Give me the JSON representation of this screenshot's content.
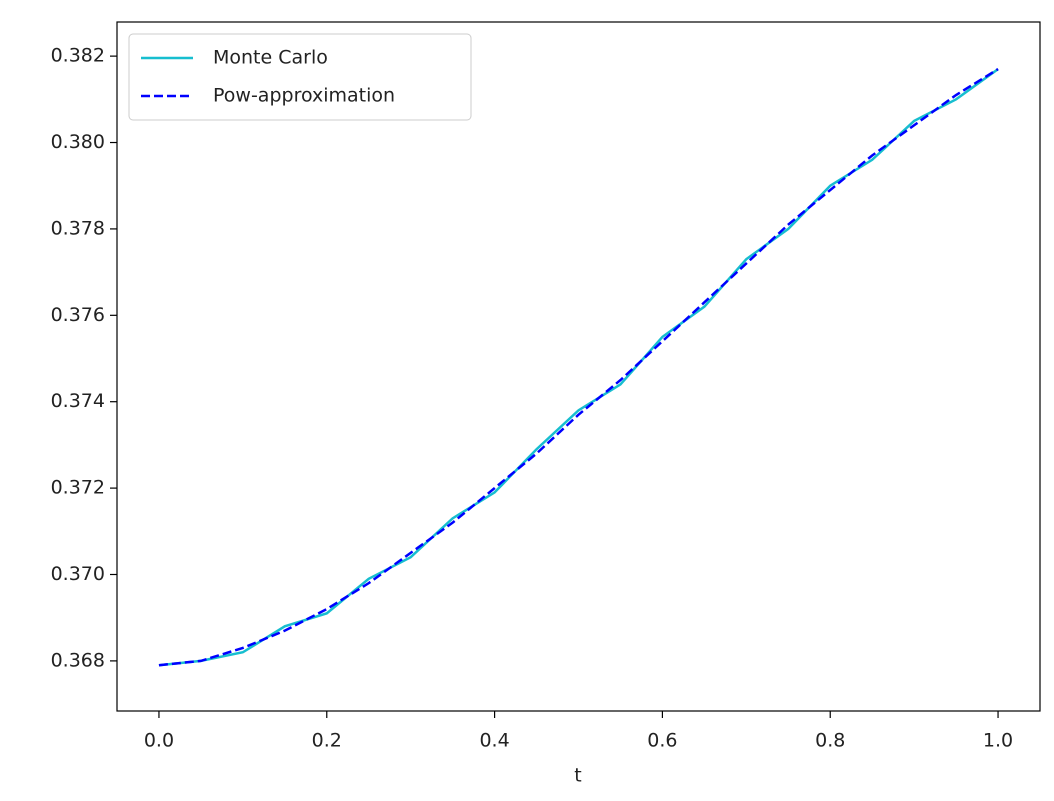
{
  "chart_data": {
    "type": "line",
    "xlabel": "t",
    "x": [
      0,
      0.05,
      0.1,
      0.15,
      0.2,
      0.25,
      0.3,
      0.35,
      0.4,
      0.45,
      0.5,
      0.55,
      0.6,
      0.65,
      0.7,
      0.75,
      0.8,
      0.85,
      0.9,
      0.95,
      1.0
    ],
    "series": [
      {
        "name": "Monte Carlo",
        "color": "#17becf",
        "linestyle": "solid",
        "values": [
          0.3679,
          0.368,
          0.3682,
          0.3688,
          0.3691,
          0.3699,
          0.3704,
          0.3713,
          0.3719,
          0.3729,
          0.3738,
          0.3744,
          0.3755,
          0.3762,
          0.3773,
          0.378,
          0.379,
          0.3796,
          0.3805,
          0.381,
          0.3817
        ]
      },
      {
        "name": "Pow-approximation",
        "color": "#0000ff",
        "linestyle": "dashed",
        "values": [
          0.3679,
          0.368,
          0.3683,
          0.3687,
          0.3692,
          0.3698,
          0.3705,
          0.3712,
          0.372,
          0.3728,
          0.3737,
          0.3745,
          0.3754,
          0.3763,
          0.3772,
          0.3781,
          0.3789,
          0.3797,
          0.3804,
          0.3811,
          0.3817
        ]
      }
    ],
    "xlim": [
      -0.05,
      1.05
    ],
    "ylim": [
      0.36684,
      0.38279
    ],
    "xticks": [
      {
        "value": 0,
        "label": "0.0"
      },
      0.2,
      0.4,
      0.6,
      0.8,
      {
        "value": 1,
        "label": "1.0"
      }
    ],
    "yticks": [
      0.368,
      {
        "value": 0.37,
        "label": "0.370"
      },
      0.372,
      0.374,
      0.376,
      0.378,
      {
        "value": 0.38,
        "label": "0.380"
      },
      0.382
    ],
    "grid": false,
    "legend": "upper left"
  }
}
